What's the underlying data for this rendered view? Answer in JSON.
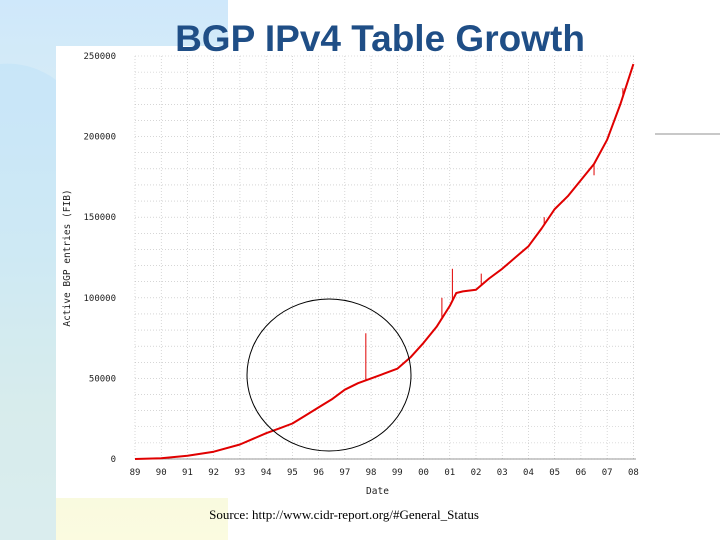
{
  "title": "BGP IPv4 Table Growth",
  "source": "Source: http://www.cidr-report.org/#General_Status",
  "colors": {
    "title": "#1f4e86",
    "series": "#e00000",
    "grid": "#bdbdbd",
    "annotation": "#000000"
  },
  "chart_data": {
    "type": "line",
    "title": "",
    "xlabel": "Date",
    "ylabel": "Active BGP entries (FIB)",
    "xlim": [
      1989,
      2008.1
    ],
    "ylim": [
      0,
      250000
    ],
    "grid": true,
    "legend": "none",
    "x_ticks": [
      "89",
      "90",
      "91",
      "92",
      "93",
      "94",
      "95",
      "96",
      "97",
      "98",
      "99",
      "00",
      "01",
      "02",
      "03",
      "04",
      "05",
      "06",
      "07",
      "08"
    ],
    "y_ticks": [
      "0",
      "50000",
      "100000",
      "150000",
      "200000",
      "250000"
    ],
    "series": [
      {
        "name": "",
        "x": [
          1989.0,
          1990.0,
          1991.0,
          1992.0,
          1993.0,
          1994.0,
          1994.5,
          1995.0,
          1995.5,
          1996.0,
          1996.5,
          1997.0,
          1997.5,
          1998.0,
          1998.5,
          1999.0,
          1999.5,
          2000.0,
          2000.5,
          2001.0,
          2001.25,
          2001.5,
          2002.0,
          2002.5,
          2003.0,
          2003.5,
          2004.0,
          2004.5,
          2005.0,
          2005.5,
          2006.0,
          2006.5,
          2007.0,
          2007.5,
          2008.0
        ],
        "y": [
          0,
          500,
          2000,
          4500,
          9000,
          16000,
          19000,
          22000,
          27000,
          32000,
          37000,
          43000,
          47000,
          50000,
          53000,
          56000,
          63000,
          72000,
          82000,
          95000,
          103000,
          104000,
          105000,
          112000,
          118000,
          125000,
          132000,
          143000,
          155000,
          163000,
          173000,
          183000,
          198000,
          220000,
          245000
        ]
      }
    ],
    "spikes": [
      {
        "x": 1997.8,
        "y": 78000
      },
      {
        "x": 2000.7,
        "y": 100000
      },
      {
        "x": 2001.1,
        "y": 118000
      },
      {
        "x": 2002.2,
        "y": 115000
      },
      {
        "x": 2004.6,
        "y": 150000
      },
      {
        "x": 2006.5,
        "y": 176000
      },
      {
        "x": 2007.6,
        "y": 230000
      }
    ]
  }
}
